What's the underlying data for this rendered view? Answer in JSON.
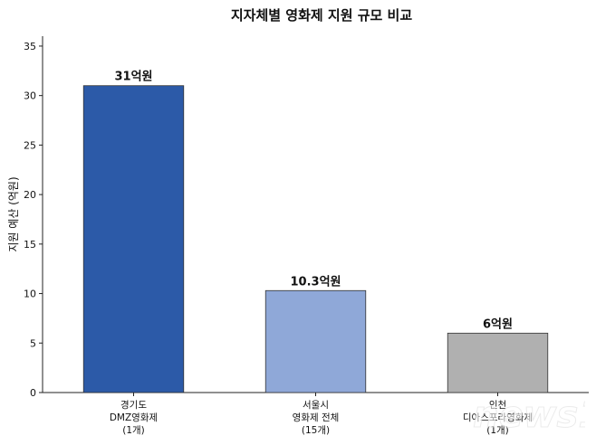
{
  "chart_data": {
    "type": "bar",
    "title": "지자체별 영화제 지원 규모 비교",
    "xlabel": "",
    "ylabel": "지원 예산 (억원)",
    "ylim": [
      0,
      36
    ],
    "yticks": [
      0,
      5,
      10,
      15,
      20,
      25,
      30,
      35
    ],
    "grid": false,
    "categories": [
      [
        "경기도",
        "DMZ영화제",
        "(1개)"
      ],
      [
        "서울시",
        "영화제 전체",
        "(15개)"
      ],
      [
        "인천",
        "디아스포라영화제",
        "(1개)"
      ]
    ],
    "values": [
      31,
      10.3,
      6
    ],
    "data_labels": [
      "31억원",
      "10.3억원",
      "6억원"
    ],
    "colors": [
      "#2c5aa8",
      "#8fa8d8",
      "#b0b0b0"
    ]
  },
  "watermark": {
    "text": "news1",
    "icon": "news1-watermark-icon"
  }
}
